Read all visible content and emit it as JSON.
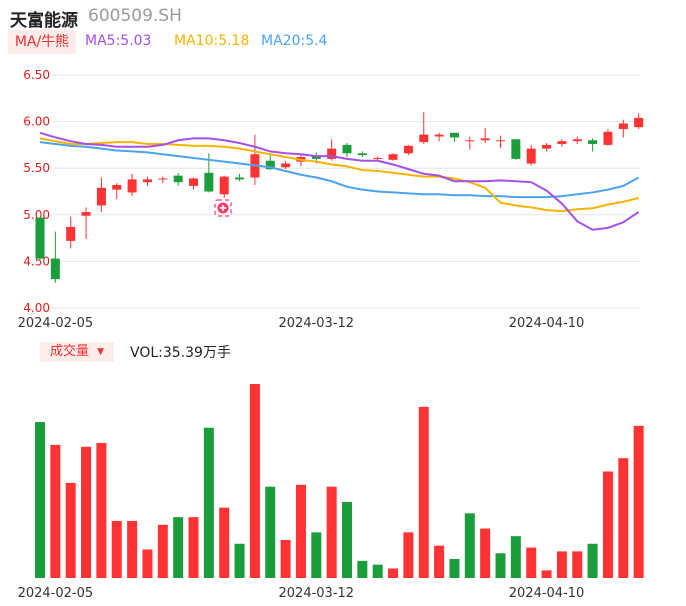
{
  "header": {
    "name": "天富能源",
    "code": "600509.SH",
    "ma_button": "MA/牛熊",
    "ma5": "MA5:5.03",
    "ma10": "MA10:5.18",
    "ma20": "MA20:5.4"
  },
  "colors": {
    "up": "#ff3333",
    "down": "#1a9e3c",
    "ma5": "#a64ee6",
    "ma10": "#f5b400",
    "ma20": "#4aa3f0",
    "grid": "#e6e6e6",
    "ytick": "#e02020"
  },
  "volume": {
    "button": "成交量",
    "label": "VOL:35.39万手"
  },
  "chart_data": {
    "type": "candlestick",
    "price_axis": {
      "ylim": [
        4.0,
        6.5
      ],
      "ticks": [
        "6.50",
        "6.00",
        "5.50",
        "5.00",
        "4.50",
        "4.00"
      ]
    },
    "x_ticks": [
      {
        "index": 1,
        "label": "2024-02-05"
      },
      {
        "index": 18,
        "label": "2024-03-12"
      },
      {
        "index": 33,
        "label": "2024-04-10"
      }
    ],
    "candles": [
      {
        "o": 4.97,
        "h": 4.97,
        "l": 4.5,
        "c": 4.53
      },
      {
        "o": 4.53,
        "h": 4.82,
        "l": 4.27,
        "c": 4.31
      },
      {
        "o": 4.72,
        "h": 4.98,
        "l": 4.64,
        "c": 4.87
      },
      {
        "o": 4.99,
        "h": 5.08,
        "l": 4.74,
        "c": 5.03
      },
      {
        "o": 5.1,
        "h": 5.4,
        "l": 5.03,
        "c": 5.29
      },
      {
        "o": 5.27,
        "h": 5.34,
        "l": 5.17,
        "c": 5.32
      },
      {
        "o": 5.24,
        "h": 5.44,
        "l": 5.2,
        "c": 5.38
      },
      {
        "o": 5.35,
        "h": 5.41,
        "l": 5.31,
        "c": 5.38
      },
      {
        "o": 5.38,
        "h": 5.41,
        "l": 5.34,
        "c": 5.39
      },
      {
        "o": 5.42,
        "h": 5.45,
        "l": 5.31,
        "c": 5.35
      },
      {
        "o": 5.31,
        "h": 5.4,
        "l": 5.27,
        "c": 5.39
      },
      {
        "o": 5.45,
        "h": 5.66,
        "l": 5.24,
        "c": 5.25
      },
      {
        "o": 5.22,
        "h": 5.42,
        "l": 5.18,
        "c": 5.41
      },
      {
        "o": 5.4,
        "h": 5.44,
        "l": 5.36,
        "c": 5.38
      },
      {
        "o": 5.4,
        "h": 5.86,
        "l": 5.32,
        "c": 5.65
      },
      {
        "o": 5.58,
        "h": 5.64,
        "l": 5.48,
        "c": 5.49
      },
      {
        "o": 5.51,
        "h": 5.58,
        "l": 5.49,
        "c": 5.55
      },
      {
        "o": 5.57,
        "h": 5.65,
        "l": 5.52,
        "c": 5.62
      },
      {
        "o": 5.63,
        "h": 5.67,
        "l": 5.55,
        "c": 5.6
      },
      {
        "o": 5.6,
        "h": 5.81,
        "l": 5.58,
        "c": 5.71
      },
      {
        "o": 5.75,
        "h": 5.77,
        "l": 5.62,
        "c": 5.66
      },
      {
        "o": 5.66,
        "h": 5.68,
        "l": 5.62,
        "c": 5.64
      },
      {
        "o": 5.6,
        "h": 5.63,
        "l": 5.58,
        "c": 5.61
      },
      {
        "o": 5.59,
        "h": 5.66,
        "l": 5.58,
        "c": 5.65
      },
      {
        "o": 5.66,
        "h": 5.75,
        "l": 5.64,
        "c": 5.74
      },
      {
        "o": 5.78,
        "h": 6.1,
        "l": 5.76,
        "c": 5.86
      },
      {
        "o": 5.84,
        "h": 5.88,
        "l": 5.79,
        "c": 5.86
      },
      {
        "o": 5.88,
        "h": 5.88,
        "l": 5.78,
        "c": 5.83
      },
      {
        "o": 5.79,
        "h": 5.84,
        "l": 5.7,
        "c": 5.8
      },
      {
        "o": 5.8,
        "h": 5.93,
        "l": 5.77,
        "c": 5.82
      },
      {
        "o": 5.79,
        "h": 5.85,
        "l": 5.72,
        "c": 5.8
      },
      {
        "o": 5.81,
        "h": 5.81,
        "l": 5.59,
        "c": 5.6
      },
      {
        "o": 5.55,
        "h": 5.75,
        "l": 5.53,
        "c": 5.71
      },
      {
        "o": 5.71,
        "h": 5.77,
        "l": 5.68,
        "c": 5.75
      },
      {
        "o": 5.76,
        "h": 5.81,
        "l": 5.73,
        "c": 5.79
      },
      {
        "o": 5.79,
        "h": 5.84,
        "l": 5.76,
        "c": 5.81
      },
      {
        "o": 5.8,
        "h": 5.82,
        "l": 5.68,
        "c": 5.76
      },
      {
        "o": 5.75,
        "h": 5.92,
        "l": 5.74,
        "c": 5.89
      },
      {
        "o": 5.92,
        "h": 6.02,
        "l": 5.83,
        "c": 5.98
      },
      {
        "o": 5.94,
        "h": 6.09,
        "l": 5.92,
        "c": 6.04
      }
    ],
    "ma5": [
      5.88,
      5.83,
      5.79,
      5.76,
      5.75,
      5.73,
      5.73,
      5.73,
      5.75,
      5.8,
      5.82,
      5.82,
      5.8,
      5.77,
      5.73,
      5.68,
      5.66,
      5.65,
      5.63,
      5.63,
      5.6,
      5.58,
      5.58,
      5.54,
      5.49,
      5.44,
      5.42,
      5.36,
      5.36,
      5.36,
      5.37,
      5.36,
      5.35,
      5.26,
      5.12,
      4.93,
      4.84,
      4.86,
      4.92,
      5.03
    ],
    "ma10": [
      5.82,
      5.79,
      5.76,
      5.76,
      5.77,
      5.78,
      5.78,
      5.76,
      5.76,
      5.75,
      5.74,
      5.74,
      5.73,
      5.71,
      5.68,
      5.65,
      5.62,
      5.59,
      5.57,
      5.54,
      5.52,
      5.48,
      5.47,
      5.45,
      5.43,
      5.41,
      5.41,
      5.39,
      5.35,
      5.29,
      5.13,
      5.1,
      5.08,
      5.05,
      5.04,
      5.06,
      5.07,
      5.11,
      5.14,
      5.18
    ],
    "ma20": [
      5.78,
      5.76,
      5.74,
      5.73,
      5.71,
      5.69,
      5.68,
      5.67,
      5.65,
      5.63,
      5.61,
      5.59,
      5.57,
      5.55,
      5.53,
      5.51,
      5.47,
      5.43,
      5.4,
      5.36,
      5.3,
      5.27,
      5.25,
      5.24,
      5.23,
      5.22,
      5.22,
      5.21,
      5.21,
      5.2,
      5.2,
      5.19,
      5.19,
      5.19,
      5.2,
      5.22,
      5.24,
      5.27,
      5.31,
      5.4
    ],
    "volume": [
      {
        "v": 41.0,
        "up": false
      },
      {
        "v": 35.0,
        "up": true
      },
      {
        "v": 25.0,
        "up": true
      },
      {
        "v": 34.5,
        "up": true
      },
      {
        "v": 35.5,
        "up": true
      },
      {
        "v": 15.0,
        "up": true
      },
      {
        "v": 15.0,
        "up": true
      },
      {
        "v": 7.5,
        "up": true
      },
      {
        "v": 14.0,
        "up": true
      },
      {
        "v": 16.0,
        "up": false
      },
      {
        "v": 16.0,
        "up": true
      },
      {
        "v": 39.5,
        "up": false
      },
      {
        "v": 18.5,
        "up": true
      },
      {
        "v": 9.0,
        "up": false
      },
      {
        "v": 51.0,
        "up": true
      },
      {
        "v": 24.0,
        "up": false
      },
      {
        "v": 10.0,
        "up": true
      },
      {
        "v": 24.5,
        "up": true
      },
      {
        "v": 12.0,
        "up": false
      },
      {
        "v": 24.0,
        "up": true
      },
      {
        "v": 20.0,
        "up": false
      },
      {
        "v": 4.5,
        "up": false
      },
      {
        "v": 3.5,
        "up": false
      },
      {
        "v": 2.5,
        "up": true
      },
      {
        "v": 12.0,
        "up": true
      },
      {
        "v": 45.0,
        "up": true
      },
      {
        "v": 8.5,
        "up": true
      },
      {
        "v": 5.0,
        "up": false
      },
      {
        "v": 17.0,
        "up": false
      },
      {
        "v": 13.0,
        "up": true
      },
      {
        "v": 6.5,
        "up": false
      },
      {
        "v": 11.0,
        "up": false
      },
      {
        "v": 8.0,
        "up": true
      },
      {
        "v": 2.0,
        "up": true
      },
      {
        "v": 7.0,
        "up": true
      },
      {
        "v": 7.0,
        "up": true
      },
      {
        "v": 9.0,
        "up": false
      },
      {
        "v": 28.0,
        "up": true
      },
      {
        "v": 31.5,
        "up": true
      },
      {
        "v": 40.0,
        "up": true
      }
    ]
  }
}
